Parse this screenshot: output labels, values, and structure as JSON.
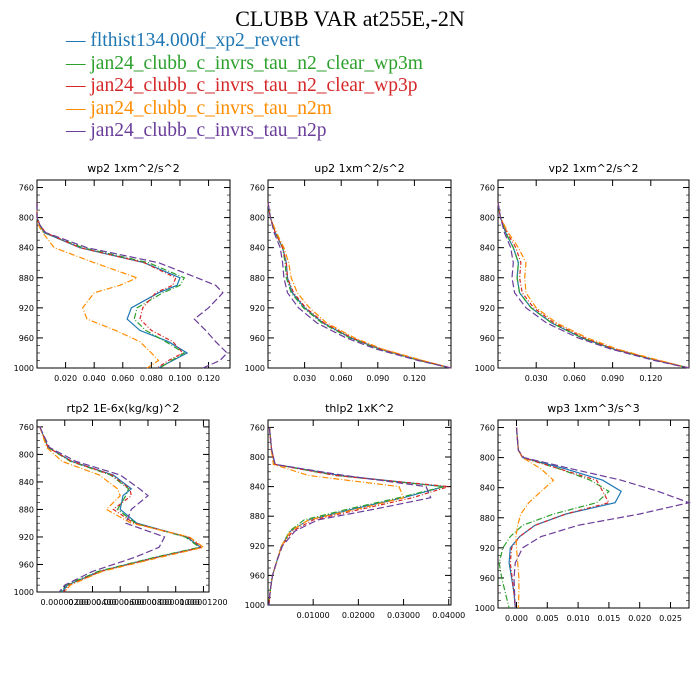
{
  "title": "CLUBB VAR at255E,-2N",
  "legend": [
    {
      "label": "flthist134.000f_xp2_revert",
      "color": "#1f77b4",
      "dash": ""
    },
    {
      "label": "jan24_clubb_c_invrs_tau_n2_clear_wp3m",
      "color": "#2ca02c",
      "dash": "6,2,1,2"
    },
    {
      "label": "jan24_clubb_c_invrs_tau_n2_clear_wp3p",
      "color": "#d62728",
      "dash": "4,2,1,2"
    },
    {
      "label": "jan24_clubb_c_invrs_tau_n2m",
      "color": "#ff8c00",
      "dash": "6,2,1,2"
    },
    {
      "label": "jan24_clubb_c_invrs_tau_n2p",
      "color": "#6a3d9a",
      "dash": "7,3"
    }
  ],
  "chart_data": [
    {
      "type": "line",
      "title": "wp2  1xm^2/s^2",
      "xlim": [
        0.0,
        0.135
      ],
      "ylim": [
        1000,
        750
      ],
      "xticks": [
        0.02,
        0.04,
        0.06,
        0.08,
        0.1,
        0.12
      ],
      "xtick_labels": [
        "0.020",
        "0.040",
        "0.060",
        "0.080",
        "0.100",
        "0.120"
      ],
      "yticks": [
        760,
        800,
        840,
        880,
        920,
        960,
        1000
      ],
      "ytick_labels": [
        "760",
        "800",
        "840",
        "880",
        "920",
        "960",
        "1000"
      ],
      "y": [
        780,
        800,
        810,
        820,
        840,
        860,
        880,
        890,
        900,
        920,
        935,
        950,
        965,
        980,
        990,
        1000
      ],
      "series": [
        {
          "x": [
            0.0,
            0.0,
            0.002,
            0.005,
            0.03,
            0.075,
            0.1,
            0.098,
            0.085,
            0.066,
            0.063,
            0.072,
            0.092,
            0.105,
            0.095,
            0.085
          ]
        },
        {
          "x": [
            0.0,
            0.0,
            0.002,
            0.005,
            0.032,
            0.078,
            0.103,
            0.1,
            0.088,
            0.07,
            0.068,
            0.076,
            0.09,
            0.103,
            0.094,
            0.086
          ]
        },
        {
          "x": [
            0.0,
            0.0,
            0.002,
            0.006,
            0.03,
            0.075,
            0.097,
            0.095,
            0.083,
            0.074,
            0.072,
            0.08,
            0.095,
            0.102,
            0.092,
            0.084
          ]
        },
        {
          "x": [
            0.0,
            0.0,
            0.001,
            0.004,
            0.012,
            0.04,
            0.07,
            0.058,
            0.04,
            0.032,
            0.035,
            0.055,
            0.072,
            0.08,
            0.085,
            0.077
          ]
        },
        {
          "x": [
            0.0,
            0.0,
            0.002,
            0.006,
            0.035,
            0.085,
            0.112,
            0.125,
            0.13,
            0.12,
            0.11,
            0.118,
            0.125,
            0.133,
            0.128,
            0.116
          ]
        }
      ]
    },
    {
      "type": "line",
      "title": "up2  1xm^2/s^2",
      "xlim": [
        0.0,
        0.15
      ],
      "ylim": [
        1000,
        750
      ],
      "xticks": [
        0.03,
        0.06,
        0.09,
        0.12
      ],
      "xtick_labels": [
        "0.030",
        "0.060",
        "0.090",
        "0.120"
      ],
      "yticks": [
        760,
        800,
        840,
        880,
        920,
        960,
        1000
      ],
      "ytick_labels": [
        "760",
        "800",
        "840",
        "880",
        "920",
        "960",
        "1000"
      ],
      "y": [
        780,
        800,
        820,
        840,
        860,
        880,
        900,
        920,
        940,
        960,
        975,
        990,
        1000
      ],
      "series": [
        {
          "x": [
            0.0,
            0.002,
            0.006,
            0.012,
            0.015,
            0.016,
            0.02,
            0.03,
            0.045,
            0.068,
            0.092,
            0.125,
            0.15
          ]
        },
        {
          "x": [
            0.0,
            0.002,
            0.006,
            0.012,
            0.014,
            0.015,
            0.019,
            0.029,
            0.044,
            0.067,
            0.091,
            0.124,
            0.15
          ]
        },
        {
          "x": [
            0.0,
            0.002,
            0.006,
            0.012,
            0.015,
            0.016,
            0.021,
            0.031,
            0.046,
            0.069,
            0.093,
            0.126,
            0.15
          ]
        },
        {
          "x": [
            0.0,
            0.002,
            0.007,
            0.013,
            0.017,
            0.019,
            0.024,
            0.034,
            0.048,
            0.071,
            0.094,
            0.127,
            0.15
          ]
        },
        {
          "x": [
            0.0,
            0.002,
            0.005,
            0.01,
            0.012,
            0.013,
            0.016,
            0.025,
            0.04,
            0.064,
            0.089,
            0.123,
            0.15
          ]
        }
      ]
    },
    {
      "type": "line",
      "title": "vp2  1xm^2/s^2",
      "xlim": [
        0.0,
        0.15
      ],
      "ylim": [
        1000,
        750
      ],
      "xticks": [
        0.03,
        0.06,
        0.09,
        0.12
      ],
      "xtick_labels": [
        "0.030",
        "0.060",
        "0.090",
        "0.120"
      ],
      "yticks": [
        760,
        800,
        840,
        880,
        920,
        960,
        1000
      ],
      "ytick_labels": [
        "760",
        "800",
        "840",
        "880",
        "920",
        "960",
        "1000"
      ],
      "y": [
        780,
        800,
        820,
        840,
        860,
        880,
        900,
        920,
        940,
        960,
        975,
        990,
        1000
      ],
      "series": [
        {
          "x": [
            0.0,
            0.002,
            0.006,
            0.012,
            0.016,
            0.015,
            0.017,
            0.026,
            0.042,
            0.066,
            0.091,
            0.125,
            0.15
          ]
        },
        {
          "x": [
            0.0,
            0.002,
            0.006,
            0.012,
            0.016,
            0.015,
            0.017,
            0.026,
            0.042,
            0.066,
            0.091,
            0.125,
            0.15
          ]
        },
        {
          "x": [
            0.0,
            0.002,
            0.007,
            0.014,
            0.018,
            0.017,
            0.019,
            0.028,
            0.044,
            0.068,
            0.092,
            0.126,
            0.15
          ]
        },
        {
          "x": [
            0.0,
            0.002,
            0.008,
            0.016,
            0.022,
            0.021,
            0.022,
            0.03,
            0.046,
            0.07,
            0.094,
            0.127,
            0.15
          ]
        },
        {
          "x": [
            0.0,
            0.002,
            0.005,
            0.01,
            0.012,
            0.011,
            0.013,
            0.022,
            0.038,
            0.063,
            0.089,
            0.123,
            0.15
          ]
        }
      ]
    },
    {
      "type": "line",
      "title": "rtp2  1E-6x(kg/kg)^2",
      "xlim": [
        0.0,
        1.24e-05
      ],
      "ylim": [
        1000,
        750
      ],
      "xticks": [
        2e-06,
        4e-06,
        6e-06,
        8e-06,
        1e-05,
        1.2e-05
      ],
      "xtick_labels": [
        "0.00000200",
        "0.00000400",
        "0.00000600",
        "0.00000800",
        "0.00001000",
        "0.00001200"
      ],
      "yticks": [
        760,
        800,
        840,
        880,
        920,
        960,
        1000
      ],
      "ytick_labels": [
        "760",
        "800",
        "840",
        "880",
        "920",
        "960",
        "1000"
      ],
      "y": [
        760,
        790,
        810,
        830,
        850,
        860,
        880,
        900,
        920,
        935,
        950,
        970,
        990,
        1000
      ],
      "series": [
        {
          "x": [
            2e-07,
            8e-07,
            2.5e-06,
            5.5e-06,
            6.8e-06,
            6.2e-06,
            6e-06,
            7.2e-06,
            1.08e-05,
            1.18e-05,
            8.5e-06,
            4.5e-06,
            2.2e-06,
            1.8e-06
          ]
        },
        {
          "x": [
            2e-07,
            8e-07,
            2.4e-06,
            5.3e-06,
            6.6e-06,
            6.4e-06,
            5.8e-06,
            7.1e-06,
            1.07e-05,
            1.17e-05,
            8.4e-06,
            4.4e-06,
            2.1e-06,
            1.7e-06
          ]
        },
        {
          "x": [
            2e-07,
            8e-07,
            2.5e-06,
            5.4e-06,
            6.7e-06,
            6.8e-06,
            5.5e-06,
            7e-06,
            1.09e-05,
            1.19e-05,
            8.6e-06,
            4.6e-06,
            2.3e-06,
            1.9e-06
          ]
        },
        {
          "x": [
            2e-07,
            7e-07,
            1.8e-06,
            4.5e-06,
            5.8e-06,
            6e-06,
            5e-06,
            6.8e-06,
            1.1e-05,
            1.2e-05,
            8.8e-06,
            4.7e-06,
            2.4e-06,
            2e-06
          ]
        },
        {
          "x": [
            2e-07,
            9e-07,
            2.8e-06,
            6e-06,
            7.4e-06,
            8e-06,
            6.8e-06,
            6.4e-06,
            9.2e-06,
            8.8e-06,
            7e-06,
            4e-06,
            2e-06,
            1.6e-06
          ]
        }
      ]
    },
    {
      "type": "line",
      "title": "thlp2  1xK^2",
      "xlim": [
        0.0,
        0.0405
      ],
      "ylim": [
        1000,
        750
      ],
      "xticks": [
        0.01,
        0.02,
        0.03,
        0.04
      ],
      "xtick_labels": [
        "0.01000",
        "0.02000",
        "0.03000",
        "0.04000"
      ],
      "yticks": [
        760,
        800,
        840,
        880,
        920,
        960,
        1000
      ],
      "ytick_labels": [
        "760",
        "800",
        "840",
        "880",
        "920",
        "960",
        "1000"
      ],
      "y": [
        760,
        790,
        810,
        825,
        840,
        855,
        870,
        885,
        900,
        920,
        940,
        960,
        980,
        1000
      ],
      "series": [
        {
          "x": [
            0.0003,
            0.0008,
            0.0015,
            0.016,
            0.039,
            0.03,
            0.019,
            0.009,
            0.005,
            0.003,
            0.002,
            0.001,
            0.0005,
            0.0002
          ]
        },
        {
          "x": [
            0.0003,
            0.0008,
            0.0015,
            0.015,
            0.039,
            0.029,
            0.018,
            0.008,
            0.0048,
            0.003,
            0.002,
            0.001,
            0.0005,
            0.0002
          ]
        },
        {
          "x": [
            0.0003,
            0.0008,
            0.0015,
            0.015,
            0.04,
            0.032,
            0.021,
            0.01,
            0.0055,
            0.003,
            0.002,
            0.001,
            0.0005,
            0.0002
          ]
        },
        {
          "x": [
            0.0003,
            0.0007,
            0.0012,
            0.009,
            0.029,
            0.03,
            0.02,
            0.009,
            0.005,
            0.003,
            0.002,
            0.001,
            0.0005,
            0.0002
          ]
        },
        {
          "x": [
            0.0003,
            0.0008,
            0.0016,
            0.017,
            0.035,
            0.036,
            0.024,
            0.011,
            0.006,
            0.0032,
            0.002,
            0.001,
            0.0005,
            0.0002
          ]
        }
      ]
    },
    {
      "type": "line",
      "title": "wp3  1xm^3/s^3",
      "xlim": [
        -0.003,
        0.028
      ],
      "ylim": [
        1000,
        750
      ],
      "xticks": [
        0.0,
        0.005,
        0.01,
        0.015,
        0.02,
        0.025
      ],
      "xtick_labels": [
        "0.000",
        "0.005",
        "0.010",
        "0.015",
        "0.020",
        "0.025"
      ],
      "yticks": [
        760,
        800,
        840,
        880,
        920,
        960,
        1000
      ],
      "ytick_labels": [
        "760",
        "800",
        "840",
        "880",
        "920",
        "960",
        "1000"
      ],
      "y": [
        760,
        790,
        800,
        815,
        830,
        845,
        860,
        875,
        890,
        905,
        920,
        940,
        960,
        980,
        1000
      ],
      "series": [
        {
          "x": [
            0.0,
            0.0003,
            0.001,
            0.008,
            0.014,
            0.017,
            0.016,
            0.008,
            0.003,
            0.0005,
            -0.001,
            -0.0012,
            -0.0008,
            -0.0004,
            -0.0002
          ]
        },
        {
          "x": [
            0.0,
            0.0003,
            0.001,
            0.007,
            0.012,
            0.015,
            0.013,
            0.006,
            0.001,
            -0.001,
            -0.0022,
            -0.0028,
            -0.0024,
            -0.0018,
            -0.0012
          ]
        },
        {
          "x": [
            0.0,
            0.0003,
            0.001,
            0.007,
            0.013,
            0.014,
            0.015,
            0.008,
            0.003,
            0.0005,
            -0.0008,
            -0.001,
            -0.0007,
            -0.0004,
            -0.0002
          ]
        },
        {
          "x": [
            0.0,
            0.0003,
            0.001,
            0.004,
            0.006,
            0.004,
            0.002,
            0.0007,
            0.0002,
            -0.0001,
            0.0,
            0.0002,
            0.0004,
            0.0004,
            0.0003
          ]
        },
        {
          "x": [
            0.0,
            0.0003,
            0.0012,
            0.009,
            0.017,
            0.023,
            0.028,
            0.02,
            0.01,
            0.004,
            0.001,
            -0.0002,
            -0.0004,
            -0.0003,
            -0.0002
          ]
        }
      ]
    }
  ]
}
